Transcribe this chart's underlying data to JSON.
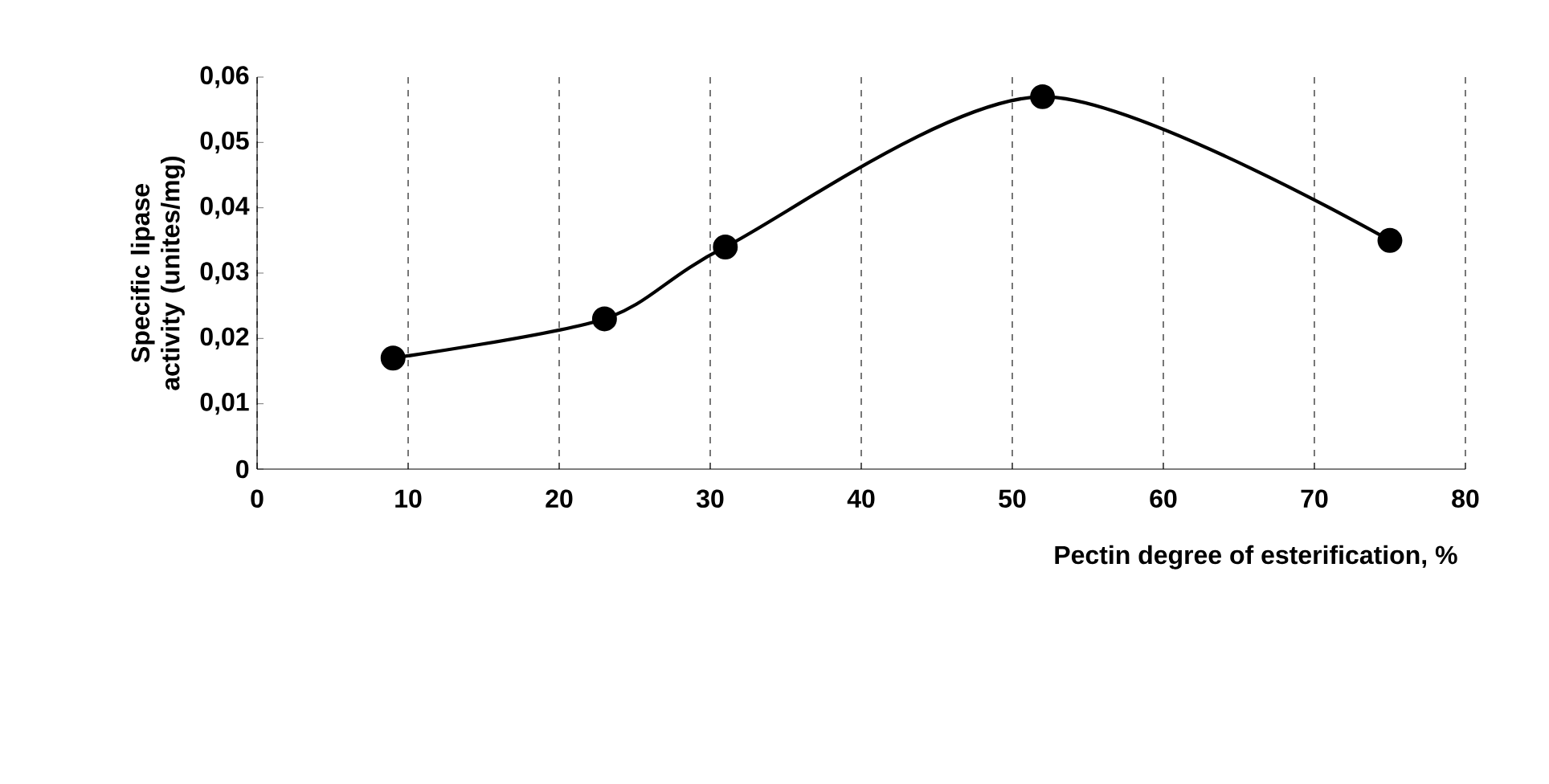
{
  "chart_data": {
    "type": "line",
    "xlabel": "Pectin degree of esterification, %",
    "ylabel": "Specific lipase activity (unites/mg)",
    "x": [
      9,
      23,
      31,
      52,
      75
    ],
    "series": [
      {
        "color": "#000000",
        "values": [
          0.017,
          0.023,
          0.034,
          0.057,
          0.035
        ]
      }
    ],
    "xlim": [
      0,
      80
    ],
    "xticks": [
      0,
      10,
      20,
      30,
      40,
      50,
      60,
      70,
      80
    ],
    "ylim": [
      0,
      0.06
    ],
    "yticks": [
      0,
      {
        "value": 0.01,
        "label": "0,01"
      },
      {
        "value": 0.02,
        "label": "0,02"
      },
      {
        "value": 0.03,
        "label": "0,03"
      },
      {
        "value": 0.04,
        "label": "0,04"
      },
      {
        "value": 0.05,
        "label": "0,05"
      },
      {
        "value": 0.06,
        "label": "0,06"
      }
    ],
    "grid": "x",
    "marker": "circle",
    "line_style": "solid"
  }
}
